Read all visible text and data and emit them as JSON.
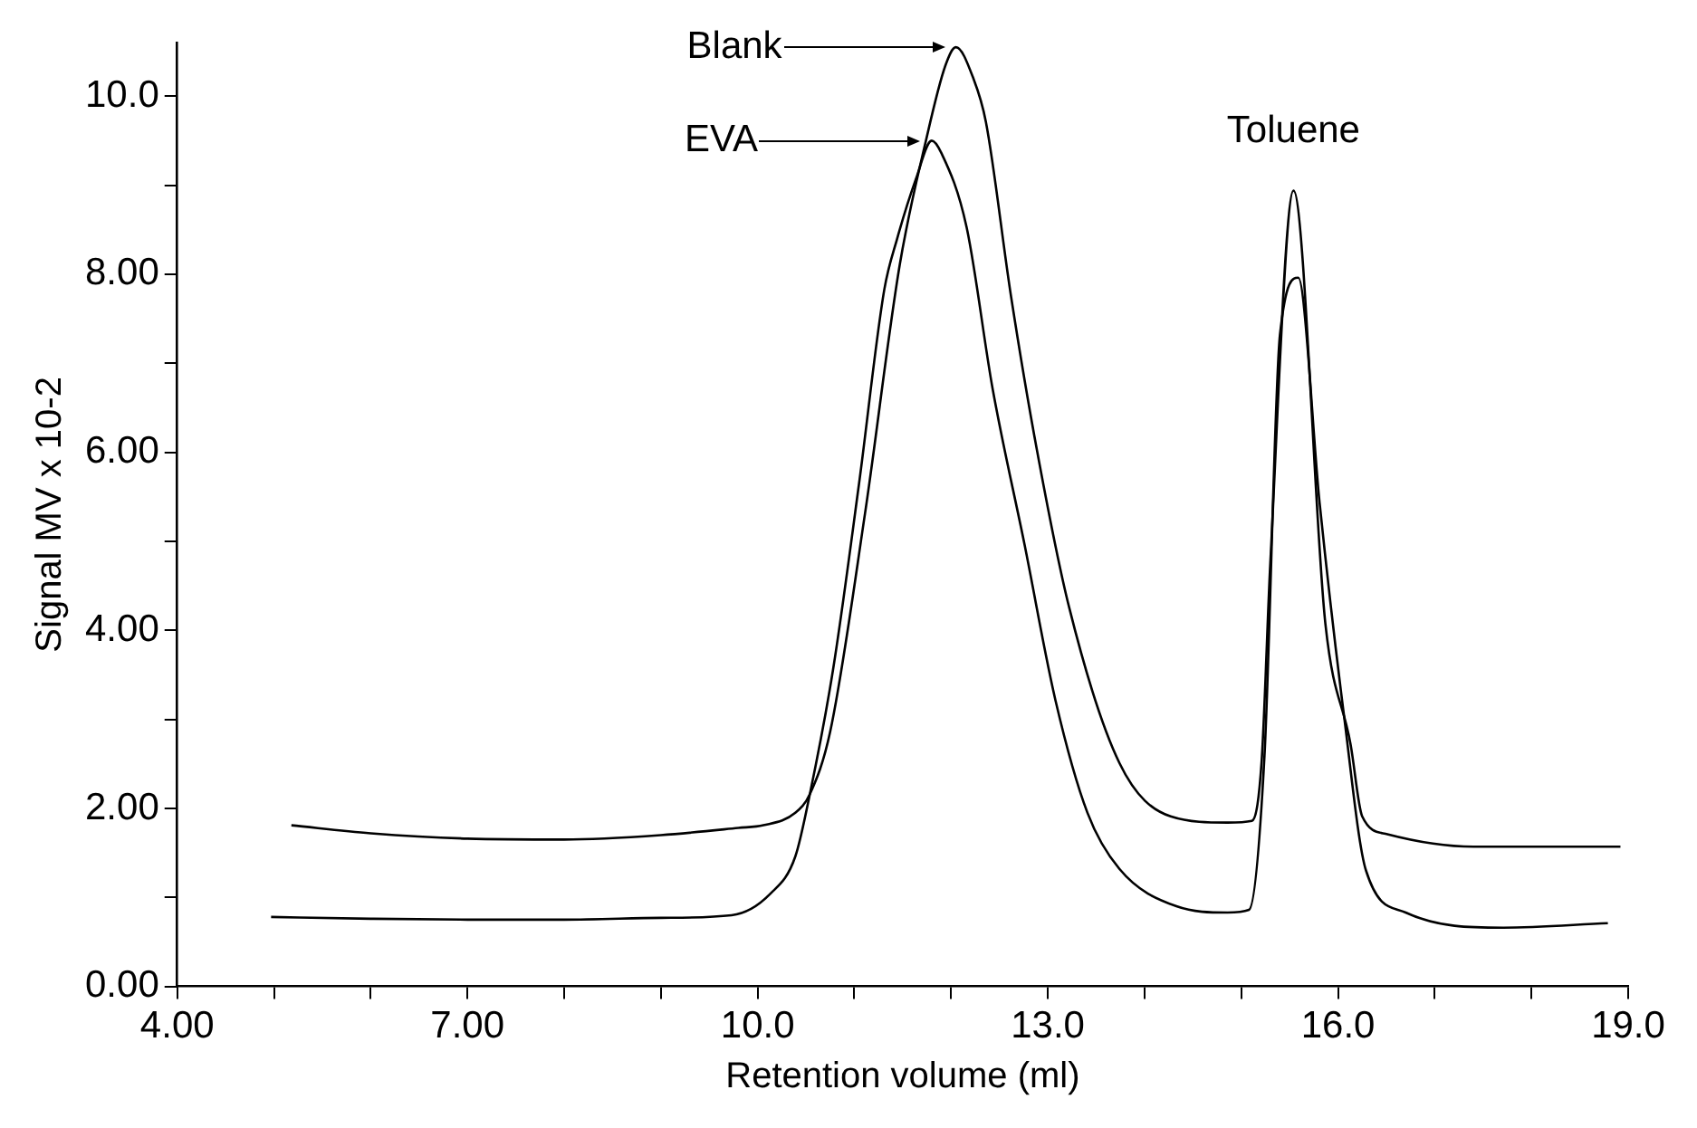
{
  "chart_data": {
    "type": "line",
    "xlabel": "Retention volume (ml)",
    "ylabel": "Signal MV x 10-2",
    "xlim": [
      4,
      19
    ],
    "ylim": [
      0,
      10.6
    ],
    "xticks": [
      {
        "value": 4,
        "label": "4.00"
      },
      {
        "value": 5,
        "label": null
      },
      {
        "value": 6,
        "label": null
      },
      {
        "value": 7,
        "label": "7.00"
      },
      {
        "value": 8,
        "label": null
      },
      {
        "value": 9,
        "label": null
      },
      {
        "value": 10,
        "label": "10.0"
      },
      {
        "value": 11,
        "label": null
      },
      {
        "value": 12,
        "label": null
      },
      {
        "value": 13,
        "label": "13.0"
      },
      {
        "value": 14,
        "label": null
      },
      {
        "value": 15,
        "label": null
      },
      {
        "value": 16,
        "label": "16.0"
      },
      {
        "value": 17,
        "label": null
      },
      {
        "value": 18,
        "label": null
      },
      {
        "value": 19,
        "label": "19.0"
      }
    ],
    "yticks": [
      {
        "value": 0,
        "label": "0.00"
      },
      {
        "value": 1,
        "label": null
      },
      {
        "value": 2,
        "label": "2.00"
      },
      {
        "value": 3,
        "label": null
      },
      {
        "value": 4,
        "label": "4.00"
      },
      {
        "value": 5,
        "label": null
      },
      {
        "value": 6,
        "label": "6.00"
      },
      {
        "value": 7,
        "label": null
      },
      {
        "value": 8,
        "label": "8.00"
      },
      {
        "value": 9,
        "label": null
      },
      {
        "value": 10,
        "label": "10.0"
      }
    ],
    "grid": false,
    "legend": "top",
    "marker": "none",
    "line_style": "solid",
    "series": [
      {
        "name": "Blank",
        "color": "#000000",
        "x": [
          5.18,
          6,
          7,
          8,
          9,
          9.8,
          10.06,
          10.39,
          10.54,
          10.75,
          11.11,
          11.47,
          11.74,
          11.94,
          12.05,
          12.23,
          12.36,
          12.62,
          12.89,
          13.22,
          13.74,
          14.27,
          14.86,
          15.11,
          15.21,
          15.3,
          15.54,
          15.87,
          16.13,
          16.25,
          16.51,
          17.4,
          18.92
        ],
        "values": [
          1.81,
          1.72,
          1.66,
          1.65,
          1.7,
          1.78,
          1.81,
          1.95,
          2.16,
          2.86,
          5.31,
          8.11,
          9.5,
          10.34,
          10.55,
          10.2,
          9.71,
          7.75,
          6.01,
          4.26,
          2.51,
          1.91,
          1.84,
          1.86,
          2.52,
          4.75,
          8.94,
          4.07,
          2.72,
          1.91,
          1.71,
          1.57,
          1.57
        ]
      },
      {
        "name": "EVA",
        "color": "#000000",
        "x": [
          4.97,
          6,
          7,
          8,
          9,
          9.73,
          10.13,
          10.39,
          10.54,
          10.78,
          11.05,
          11.31,
          11.44,
          11.64,
          11.8,
          11.9,
          12.16,
          12.43,
          12.76,
          13.08,
          13.41,
          13.74,
          14.33,
          14.86,
          15.08,
          15.24,
          15.4,
          15.59,
          15.81,
          16.06,
          16.29,
          16.7,
          17.71,
          18.79
        ],
        "values": [
          0.78,
          0.76,
          0.75,
          0.75,
          0.77,
          0.8,
          1.04,
          1.46,
          2.16,
          3.56,
          5.66,
          7.83,
          8.39,
          9.08,
          9.5,
          9.36,
          8.53,
          6.71,
          4.96,
          3.21,
          1.95,
          1.32,
          0.9,
          0.83,
          0.86,
          2.59,
          7.32,
          7.96,
          5.43,
          3.06,
          1.3,
          0.83,
          0.66,
          0.71
        ]
      }
    ],
    "annotations": [
      {
        "text": "Toluene",
        "x": 15.54,
        "y": 8.94
      }
    ]
  }
}
